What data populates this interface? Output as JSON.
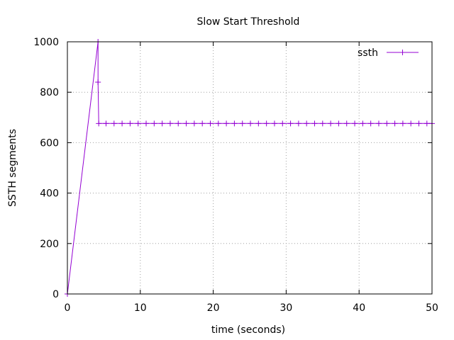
{
  "chart_data": {
    "type": "line",
    "title": "Slow Start Threshold",
    "xlabel": "time (seconds)",
    "ylabel": "SSTH segments",
    "xlim": [
      0,
      50
    ],
    "ylim": [
      0,
      1000
    ],
    "xticks": [
      0,
      10,
      20,
      30,
      40,
      50
    ],
    "yticks": [
      0,
      200,
      400,
      600,
      800,
      1000
    ],
    "xtick_labels": [
      "0",
      "10",
      "20",
      "30",
      "40",
      "50"
    ],
    "ytick_labels": [
      "0",
      "200",
      "400",
      "600",
      "800",
      "1000"
    ],
    "grid": true,
    "legend_position": "top-right",
    "series": [
      {
        "name": "ssth",
        "color": "#9400d3",
        "marker": "plus",
        "points": [
          [
            0.0,
            0
          ],
          [
            4.2,
            1000
          ],
          [
            4.2,
            840
          ],
          [
            4.3,
            676
          ],
          [
            5.3,
            676
          ],
          [
            6.4,
            676
          ],
          [
            7.5,
            676
          ],
          [
            8.6,
            676
          ],
          [
            9.7,
            676
          ],
          [
            10.8,
            676
          ],
          [
            11.9,
            676
          ],
          [
            13.0,
            676
          ],
          [
            14.1,
            676
          ],
          [
            15.2,
            676
          ],
          [
            16.3,
            676
          ],
          [
            17.4,
            676
          ],
          [
            18.5,
            676
          ],
          [
            19.6,
            676
          ],
          [
            20.7,
            676
          ],
          [
            21.8,
            676
          ],
          [
            22.9,
            676
          ],
          [
            24.0,
            676
          ],
          [
            25.1,
            676
          ],
          [
            26.2,
            676
          ],
          [
            27.3,
            676
          ],
          [
            28.4,
            676
          ],
          [
            29.5,
            676
          ],
          [
            30.6,
            676
          ],
          [
            31.7,
            676
          ],
          [
            32.8,
            676
          ],
          [
            33.9,
            676
          ],
          [
            35.0,
            676
          ],
          [
            36.1,
            676
          ],
          [
            37.2,
            676
          ],
          [
            38.3,
            676
          ],
          [
            39.4,
            676
          ],
          [
            40.5,
            676
          ],
          [
            41.6,
            676
          ],
          [
            42.7,
            676
          ],
          [
            43.8,
            676
          ],
          [
            44.9,
            676
          ],
          [
            46.0,
            676
          ],
          [
            47.1,
            676
          ],
          [
            48.2,
            676
          ],
          [
            49.3,
            676
          ],
          [
            50.0,
            676
          ]
        ]
      }
    ]
  }
}
